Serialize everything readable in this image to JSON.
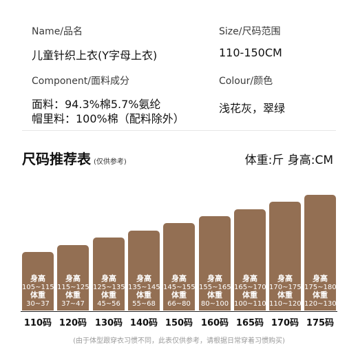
{
  "info": {
    "name_label": "Name/品名",
    "name_value": "儿童针织上衣(Y字母上衣)",
    "size_label": "Size/尺码范围",
    "size_value": "110-150CM",
    "component_label": "Component/面料成分",
    "component_value_1": "面料：94.3%棉5.7%氨纶",
    "component_value_2": "帽里料：100%棉（配料除外）",
    "colour_label": "Colour/颜色",
    "colour_value": "浅花灰，翠绿"
  },
  "chart": {
    "title": "尺码推荐表",
    "subtitle": "(仅供参考)",
    "units": "体重:斤  身高:CM",
    "height_label": "身高",
    "weight_label": "体重",
    "bar_color": "#936f53",
    "footnote": "(由于体型跟穿衣习惯不同，此表仅供参考，请根据日常穿着习惯购买)"
  },
  "chart_data": {
    "type": "table",
    "sizes": [
      "110码",
      "120码",
      "130码",
      "140码",
      "150码",
      "160码",
      "165码",
      "170码",
      "175码"
    ],
    "height_ranges": [
      "105~115",
      "115~125",
      "125~135",
      "135~145",
      "145~155",
      "155~165",
      "165~170",
      "170~175",
      "175~180"
    ],
    "weight_ranges": [
      "30~37",
      "37~47",
      "45~56",
      "55~68",
      "66~80",
      "80~100",
      "100~110",
      "110~120",
      "120~130"
    ]
  }
}
